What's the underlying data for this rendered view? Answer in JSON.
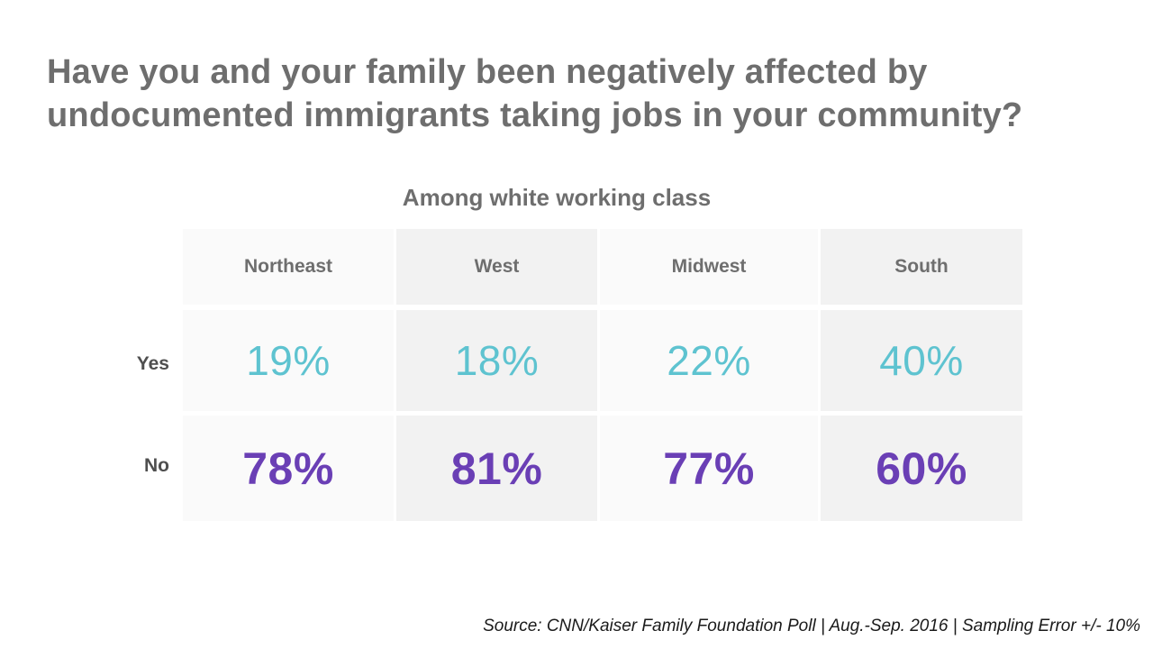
{
  "title": "Have you and your family been negatively affected by undocumented immigrants taking jobs in your community?",
  "subtitle": "Among white working class",
  "source": "Source: CNN/Kaiser Family Foundation Poll | Aug.-Sep. 2016 | Sampling Error +/- 10%",
  "colors": {
    "yes": "#5ec3d0",
    "no": "#6a3fb5",
    "text_gray": "#6e6e6e"
  },
  "chart_data": {
    "type": "table",
    "title": "Have you and your family been negatively affected by undocumented immigrants taking jobs in your community?",
    "subtitle": "Among white working class",
    "columns": [
      "Northeast",
      "West",
      "Midwest",
      "South"
    ],
    "rows": [
      {
        "label": "Yes",
        "values": [
          "19%",
          "18%",
          "22%",
          "40%"
        ]
      },
      {
        "label": "No",
        "values": [
          "78%",
          "81%",
          "77%",
          "60%"
        ]
      }
    ]
  }
}
